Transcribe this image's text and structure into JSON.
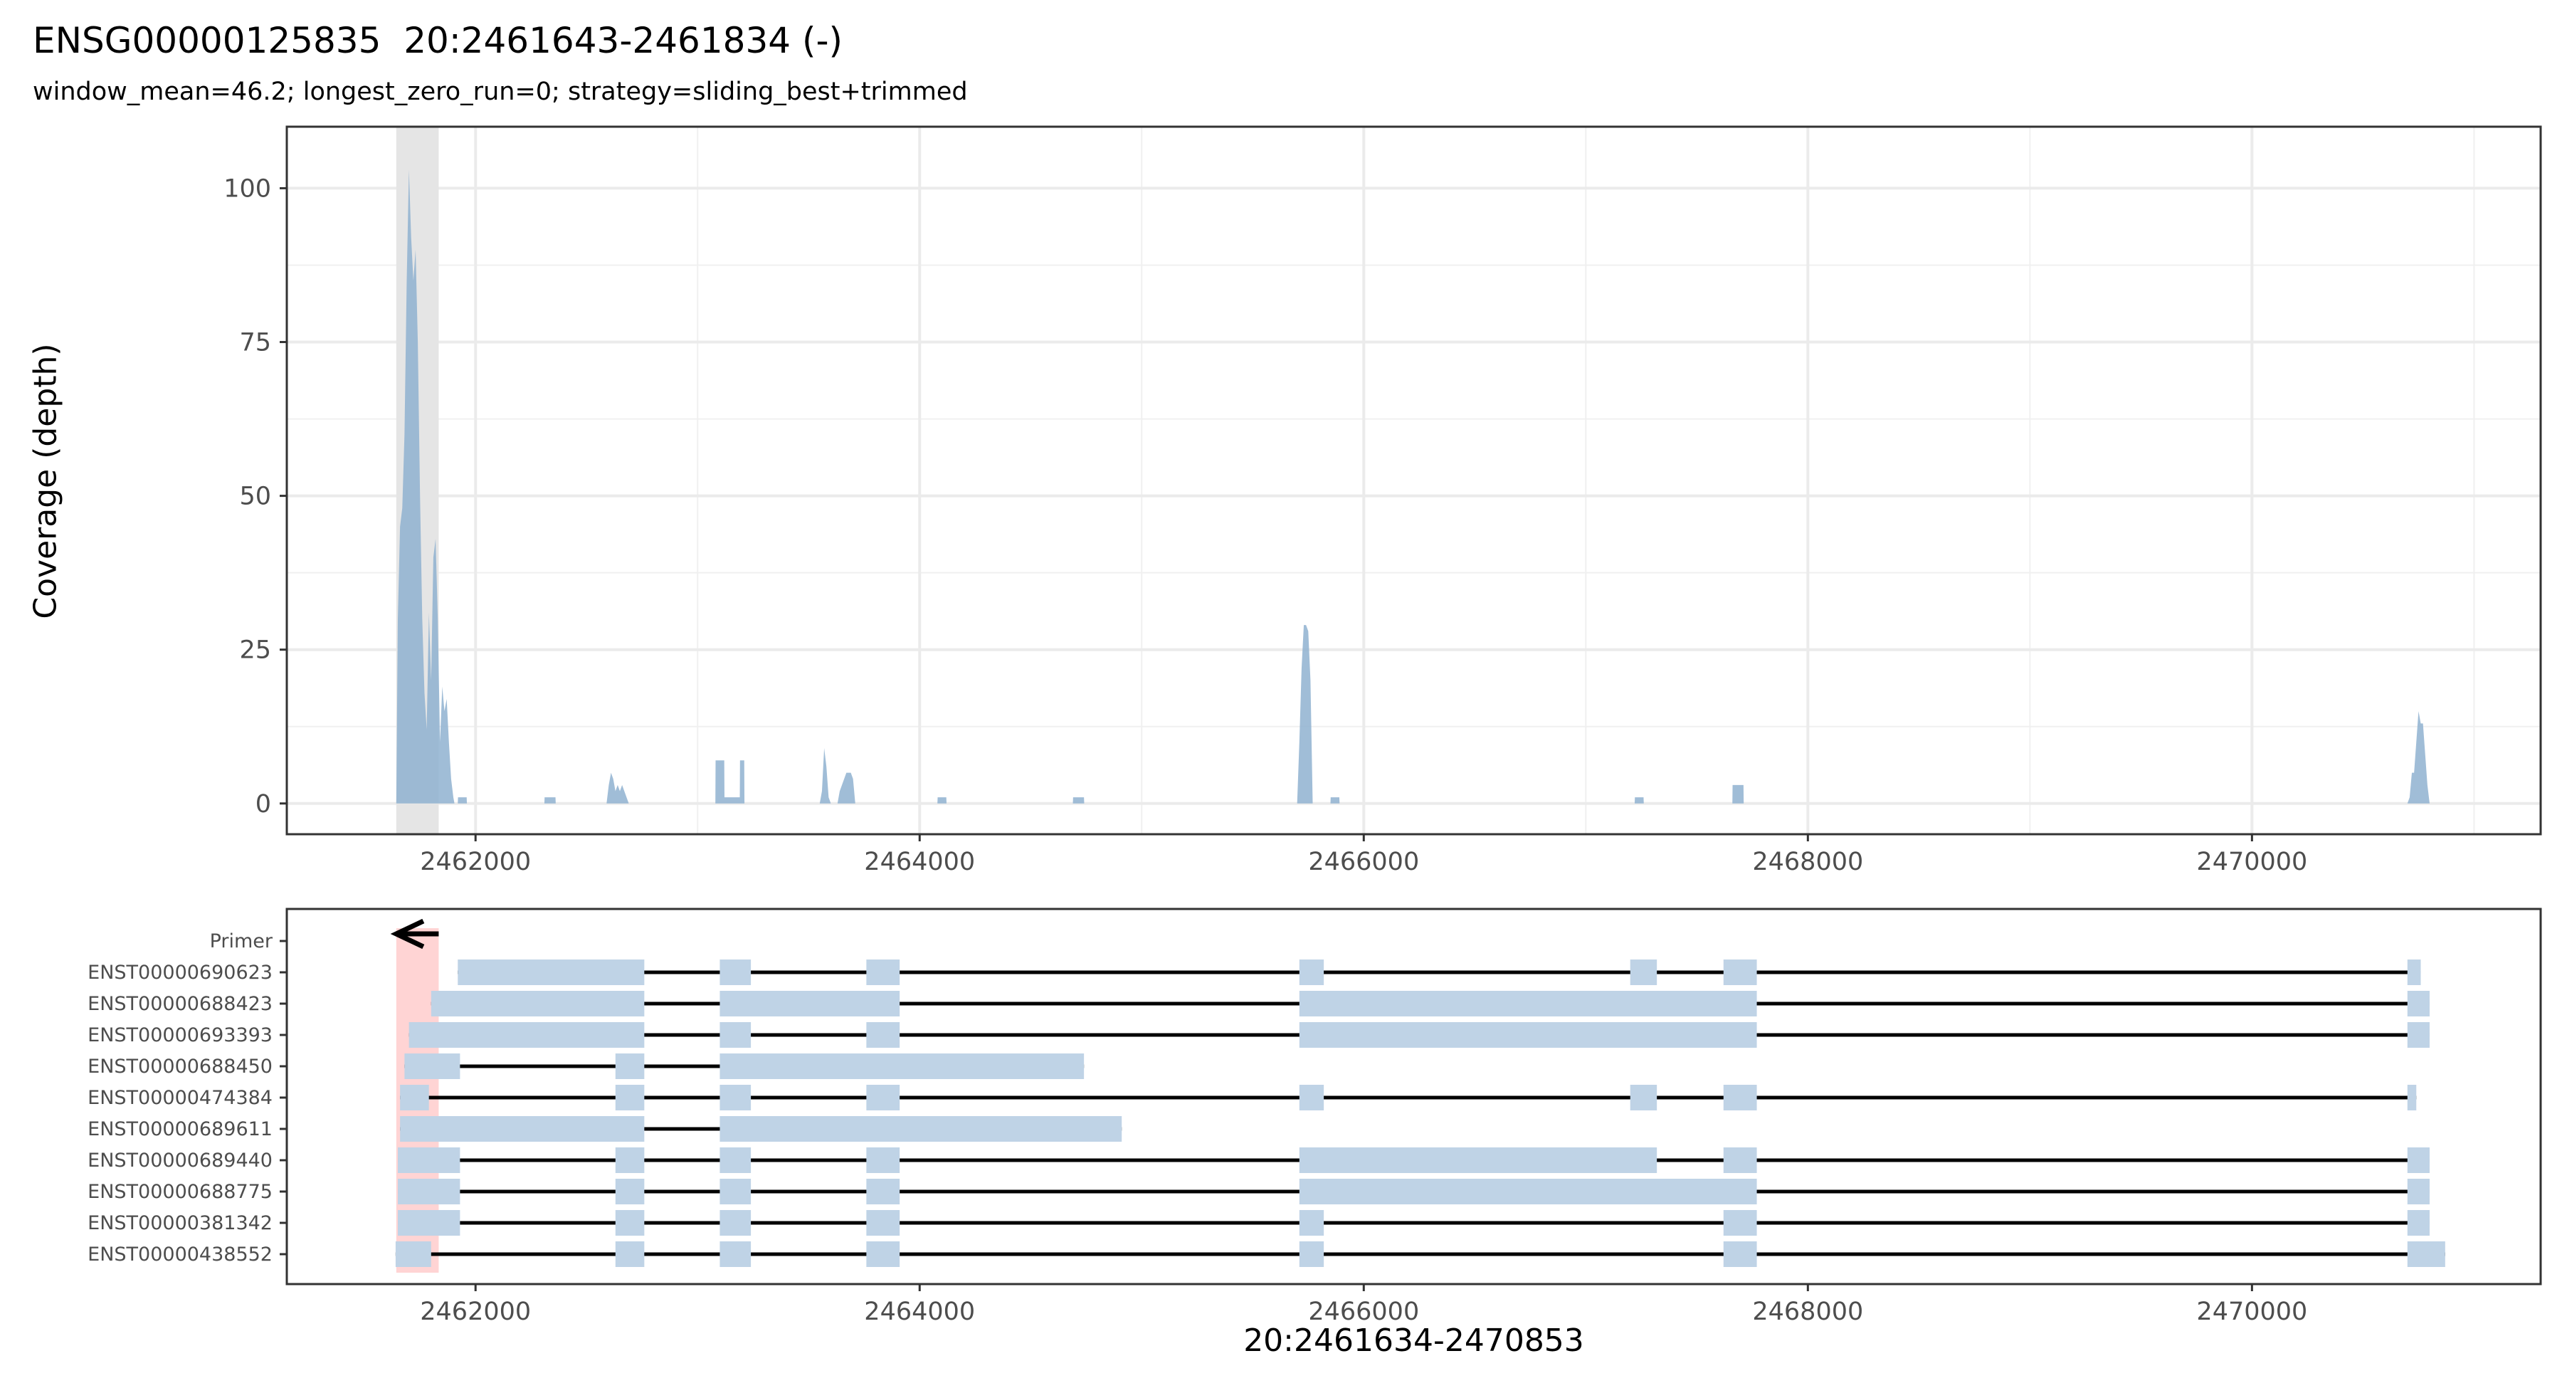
{
  "chart_data": {
    "title": "ENSG00000125835  20:2461643-2461834 (-)",
    "subtitle": "window_mean=46.2; longest_zero_run=0; strategy=sliding_best+trimmed",
    "xlabel": "20:2461634-2470853",
    "colors": {
      "coverage": "#8fb1d0",
      "exon": "#bfd3e6",
      "primer_region": "#ffcccc",
      "highlight_window": "#e5e5e5",
      "intron": "#000000"
    },
    "xlim": [
      2461150,
      2471300
    ],
    "x_ticks": [
      2462000,
      2464000,
      2466000,
      2468000,
      2470000
    ],
    "coverage_panel": {
      "type": "area",
      "ylabel": "Coverage (depth)",
      "ylim": [
        -5,
        110
      ],
      "y_ticks": [
        0,
        25,
        50,
        75,
        100
      ],
      "grid": true,
      "highlight_window": [
        2461643,
        2461834
      ],
      "points": [
        [
          2461643,
          0
        ],
        [
          2461650,
          30
        ],
        [
          2461660,
          45
        ],
        [
          2461670,
          48
        ],
        [
          2461680,
          60
        ],
        [
          2461690,
          85
        ],
        [
          2461700,
          103
        ],
        [
          2461710,
          92
        ],
        [
          2461720,
          85
        ],
        [
          2461730,
          90
        ],
        [
          2461740,
          75
        ],
        [
          2461750,
          50
        ],
        [
          2461760,
          30
        ],
        [
          2461770,
          18
        ],
        [
          2461780,
          12
        ],
        [
          2461790,
          31
        ],
        [
          2461800,
          20
        ],
        [
          2461810,
          40
        ],
        [
          2461820,
          43
        ],
        [
          2461830,
          30
        ],
        [
          2461840,
          10
        ],
        [
          2461850,
          19
        ],
        [
          2461860,
          15
        ],
        [
          2461870,
          17
        ],
        [
          2461880,
          10
        ],
        [
          2461890,
          4
        ],
        [
          2461900,
          1
        ],
        [
          2461905,
          0
        ],
        [
          2461920,
          0
        ],
        [
          2461921,
          1
        ],
        [
          2461960,
          1
        ],
        [
          2461961,
          0
        ],
        [
          2462310,
          0
        ],
        [
          2462311,
          1
        ],
        [
          2462360,
          1
        ],
        [
          2462361,
          0
        ],
        [
          2462590,
          0
        ],
        [
          2462600,
          3
        ],
        [
          2462610,
          5
        ],
        [
          2462620,
          4
        ],
        [
          2462630,
          2
        ],
        [
          2462640,
          3
        ],
        [
          2462650,
          2
        ],
        [
          2462660,
          3
        ],
        [
          2462670,
          2
        ],
        [
          2462680,
          1
        ],
        [
          2462690,
          0
        ],
        [
          2463080,
          0
        ],
        [
          2463081,
          7
        ],
        [
          2463120,
          7
        ],
        [
          2463121,
          1
        ],
        [
          2463190,
          1
        ],
        [
          2463191,
          7
        ],
        [
          2463210,
          7
        ],
        [
          2463211,
          0
        ],
        [
          2463550,
          0
        ],
        [
          2463560,
          2
        ],
        [
          2463570,
          9
        ],
        [
          2463580,
          6
        ],
        [
          2463590,
          1
        ],
        [
          2463600,
          0
        ],
        [
          2463630,
          0
        ],
        [
          2463640,
          2
        ],
        [
          2463650,
          3
        ],
        [
          2463660,
          4
        ],
        [
          2463670,
          5
        ],
        [
          2463680,
          5
        ],
        [
          2463690,
          5
        ],
        [
          2463700,
          4
        ],
        [
          2463710,
          0
        ],
        [
          2464080,
          0
        ],
        [
          2464081,
          1
        ],
        [
          2464120,
          1
        ],
        [
          2464121,
          0
        ],
        [
          2464690,
          0
        ],
        [
          2464691,
          1
        ],
        [
          2464740,
          1
        ],
        [
          2464741,
          0
        ],
        [
          2465700,
          0
        ],
        [
          2465710,
          10
        ],
        [
          2465720,
          22
        ],
        [
          2465730,
          29
        ],
        [
          2465740,
          29
        ],
        [
          2465750,
          28
        ],
        [
          2465760,
          20
        ],
        [
          2465770,
          0
        ],
        [
          2465850,
          0
        ],
        [
          2465851,
          1
        ],
        [
          2465890,
          1
        ],
        [
          2465891,
          0
        ],
        [
          2467220,
          0
        ],
        [
          2467221,
          1
        ],
        [
          2467260,
          1
        ],
        [
          2467261,
          0
        ],
        [
          2467660,
          0
        ],
        [
          2467661,
          3
        ],
        [
          2467710,
          3
        ],
        [
          2467711,
          0
        ],
        [
          2470700,
          0
        ],
        [
          2470710,
          1
        ],
        [
          2470720,
          5
        ],
        [
          2470730,
          5
        ],
        [
          2470740,
          10
        ],
        [
          2470750,
          15
        ],
        [
          2470760,
          13
        ],
        [
          2470770,
          13
        ],
        [
          2470780,
          8
        ],
        [
          2470790,
          3
        ],
        [
          2470800,
          0
        ]
      ]
    },
    "transcript_panel": {
      "primer_region": [
        2461643,
        2461834
      ],
      "primer_label": "Primer",
      "primer_arrow": {
        "from": 2461834,
        "to": 2461643,
        "direction": "left"
      },
      "transcripts": [
        {
          "id": "ENST00000690623",
          "exons": [
            [
              2461920,
              2462760
            ],
            [
              2463100,
              2463240
            ],
            [
              2463760,
              2463910
            ],
            [
              2465710,
              2465820
            ],
            [
              2467200,
              2467320
            ],
            [
              2467620,
              2467770
            ],
            [
              2470700,
              2470760
            ]
          ]
        },
        {
          "id": "ENST00000688423",
          "exons": [
            [
              2461800,
              2462760
            ],
            [
              2463100,
              2463910
            ],
            [
              2465710,
              2467770
            ],
            [
              2470700,
              2470800
            ]
          ]
        },
        {
          "id": "ENST00000693393",
          "exons": [
            [
              2461700,
              2462760
            ],
            [
              2463100,
              2463240
            ],
            [
              2463760,
              2463910
            ],
            [
              2465710,
              2467770
            ],
            [
              2470700,
              2470800
            ]
          ]
        },
        {
          "id": "ENST00000688450",
          "exons": [
            [
              2461680,
              2461930
            ],
            [
              2462630,
              2462760
            ],
            [
              2463100,
              2464740
            ]
          ]
        },
        {
          "id": "ENST00000474384",
          "exons": [
            [
              2461660,
              2461790
            ],
            [
              2462630,
              2462760
            ],
            [
              2463100,
              2463240
            ],
            [
              2463760,
              2463910
            ],
            [
              2465710,
              2465820
            ],
            [
              2467200,
              2467320
            ],
            [
              2467620,
              2467770
            ],
            [
              2470700,
              2470740
            ]
          ]
        },
        {
          "id": "ENST00000689611",
          "exons": [
            [
              2461660,
              2462760
            ],
            [
              2463100,
              2464910
            ]
          ]
        },
        {
          "id": "ENST00000689440",
          "exons": [
            [
              2461650,
              2461930
            ],
            [
              2462630,
              2462760
            ],
            [
              2463100,
              2463240
            ],
            [
              2463760,
              2463910
            ],
            [
              2465710,
              2467320
            ],
            [
              2467620,
              2467770
            ],
            [
              2470700,
              2470800
            ]
          ]
        },
        {
          "id": "ENST00000688775",
          "exons": [
            [
              2461650,
              2461930
            ],
            [
              2462630,
              2462760
            ],
            [
              2463100,
              2463240
            ],
            [
              2463760,
              2463910
            ],
            [
              2465710,
              2467770
            ],
            [
              2470700,
              2470800
            ]
          ]
        },
        {
          "id": "ENST00000381342",
          "exons": [
            [
              2461650,
              2461930
            ],
            [
              2462630,
              2462760
            ],
            [
              2463100,
              2463240
            ],
            [
              2463760,
              2463910
            ],
            [
              2465710,
              2465820
            ],
            [
              2467620,
              2467770
            ],
            [
              2470700,
              2470800
            ]
          ]
        },
        {
          "id": "ENST00000438552",
          "exons": [
            [
              2461640,
              2461800
            ],
            [
              2462630,
              2462760
            ],
            [
              2463100,
              2463240
            ],
            [
              2463760,
              2463910
            ],
            [
              2465710,
              2465820
            ],
            [
              2467620,
              2467770
            ],
            [
              2470700,
              2470870
            ]
          ]
        }
      ]
    }
  }
}
